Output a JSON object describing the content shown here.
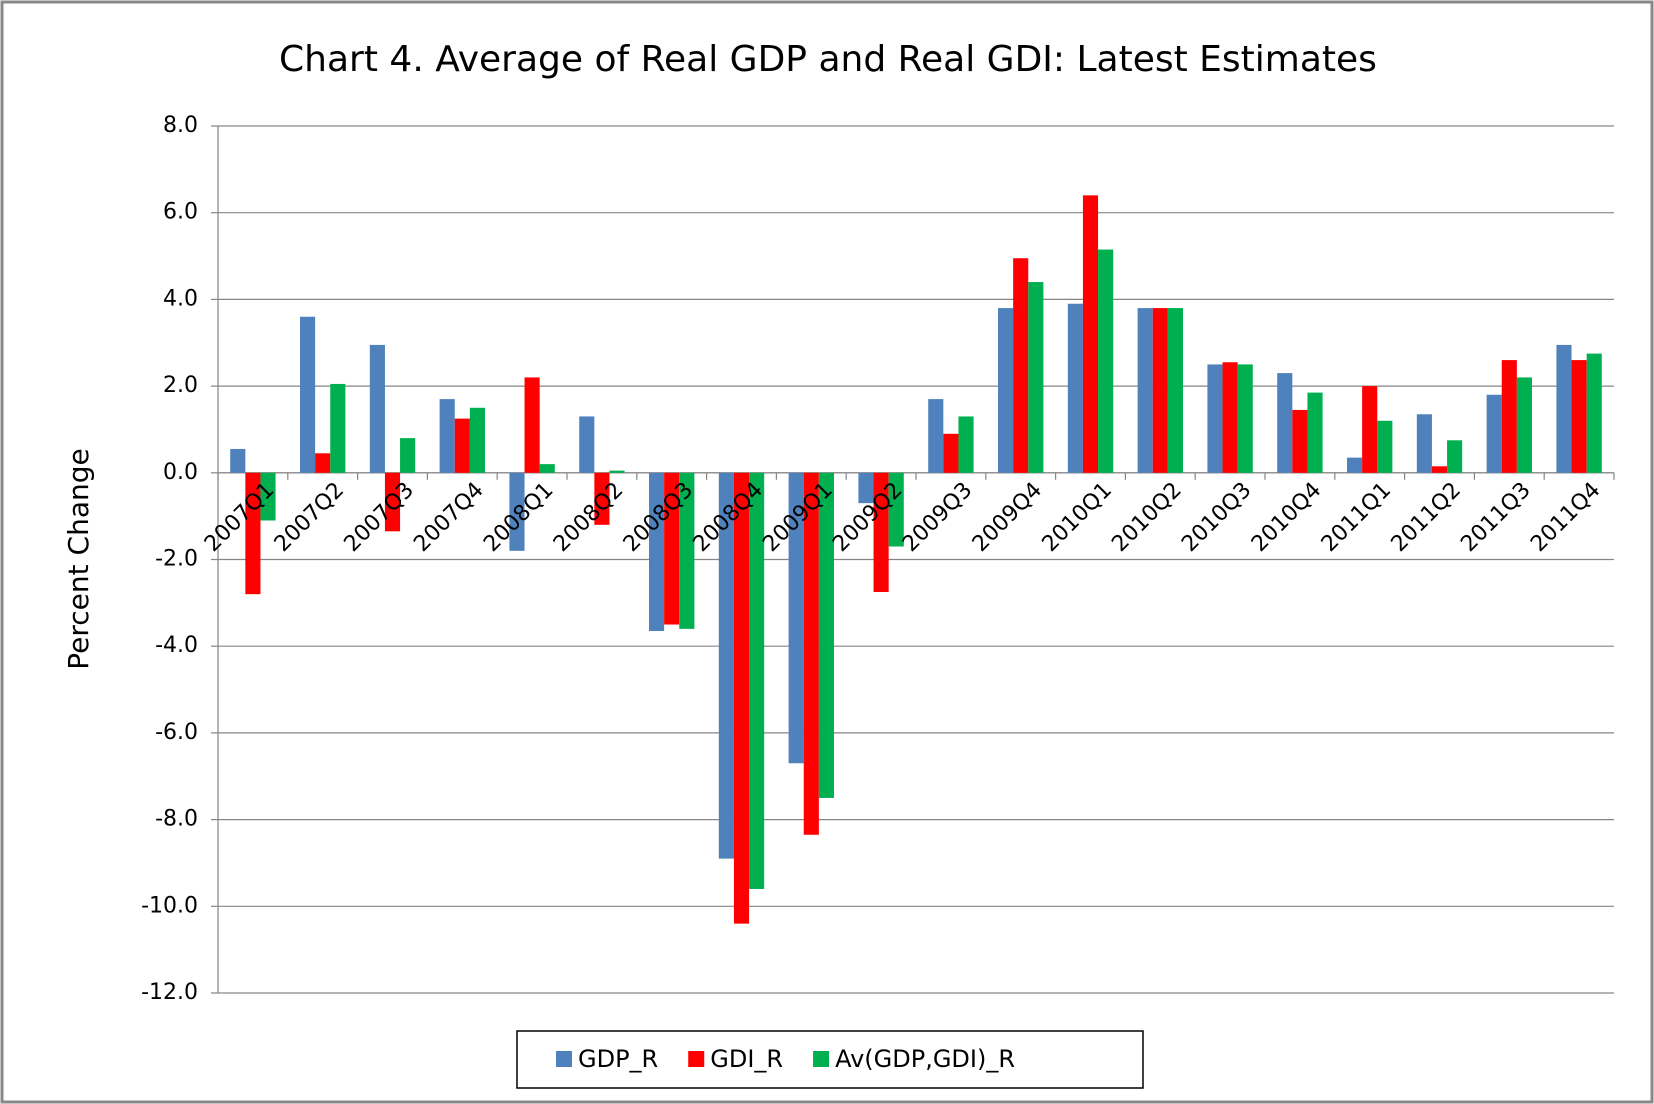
{
  "chart_data": {
    "type": "bar",
    "title": "Chart 4.  Average of Real GDP and Real GDI: Latest Estimates",
    "y_label": "Percent Change",
    "categories": [
      "2007Q1",
      "2007Q2",
      "2007Q3",
      "2007Q4",
      "2008Q1",
      "2008Q2",
      "2008Q3",
      "2008Q4",
      "2009Q1",
      "2009Q2",
      "2009Q3",
      "2009Q4",
      "2010Q1",
      "2010Q2",
      "2010Q3",
      "2010Q4",
      "2011Q1",
      "2011Q2",
      "2011Q3",
      "2011Q4"
    ],
    "series": [
      {
        "name": "GDP_R",
        "color": "#4f81bd",
        "values": [
          0.55,
          3.6,
          2.95,
          1.7,
          -1.8,
          1.3,
          -3.65,
          -8.9,
          -6.7,
          -0.7,
          1.7,
          3.8,
          3.9,
          3.8,
          2.5,
          2.3,
          0.35,
          1.35,
          1.8,
          2.95
        ]
      },
      {
        "name": "GDI_R",
        "color": "#ff0000",
        "values": [
          -2.8,
          0.45,
          -1.35,
          1.25,
          2.2,
          -1.2,
          -3.5,
          -10.4,
          -8.35,
          -2.75,
          0.9,
          4.95,
          6.4,
          3.8,
          2.55,
          1.45,
          2.0,
          0.15,
          2.6,
          2.6
        ]
      },
      {
        "name": "Av(GDP,GDI)_R",
        "color": "#00b050",
        "values": [
          -1.1,
          2.05,
          0.8,
          1.5,
          0.2,
          0.05,
          -3.6,
          -9.6,
          -7.5,
          -1.7,
          1.3,
          4.4,
          5.15,
          3.8,
          2.5,
          1.85,
          1.2,
          0.75,
          2.2,
          2.75
        ]
      }
    ],
    "ylim": [
      -12,
      8
    ],
    "yticks": [
      {
        "value": -12,
        "label": "-12.0"
      },
      {
        "value": -10,
        "label": "-10.0"
      },
      {
        "value": -8,
        "label": "-8.0"
      },
      {
        "value": -6,
        "label": "-6.0"
      },
      {
        "value": -4,
        "label": "-4.0"
      },
      {
        "value": -2,
        "label": "-2.0"
      },
      {
        "value": 0,
        "label": "0.0"
      },
      {
        "value": 2,
        "label": "2.0"
      },
      {
        "value": 4,
        "label": "4.0"
      },
      {
        "value": 6,
        "label": "6.0"
      },
      {
        "value": 8,
        "label": "8.0"
      }
    ],
    "grid": true,
    "legend": "bottom"
  }
}
